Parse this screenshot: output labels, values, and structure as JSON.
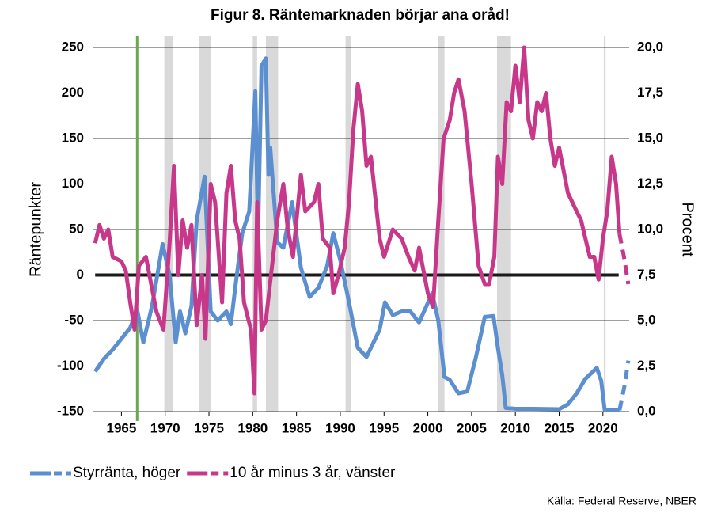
{
  "chart_data": {
    "type": "line",
    "title": "Figur 8. Räntemarknaden börjar ana oråd!",
    "ylabel": "Räntepunkter",
    "y2label": "Procent",
    "source": "Källa: Federal Reserve, NBER",
    "xlim": [
      1961.8,
      2023
    ],
    "xticks": [
      1965,
      1970,
      1975,
      1980,
      1985,
      1990,
      1995,
      2000,
      2005,
      2010,
      2015,
      2020
    ],
    "ylim": [
      -150,
      250
    ],
    "yticks": [
      -150,
      -100,
      -50,
      0,
      50,
      100,
      150,
      200,
      250
    ],
    "y2lim": [
      0,
      20
    ],
    "y2ticks": [
      {
        "value": 0,
        "label": "0,0"
      },
      {
        "value": 2.5,
        "label": "2,5"
      },
      {
        "value": 5,
        "label": "5,0"
      },
      {
        "value": 7.5,
        "label": "7,5"
      },
      {
        "value": 10,
        "label": "10,0"
      },
      {
        "value": 12.5,
        "label": "12,5"
      },
      {
        "value": 15,
        "label": "15,0"
      },
      {
        "value": 17.5,
        "label": "17,5"
      },
      {
        "value": 20,
        "label": "20,0"
      }
    ],
    "grid": true,
    "legend": "bottom-left",
    "recessions": [
      [
        1969.9,
        1970.9
      ],
      [
        1973.9,
        1975.2
      ],
      [
        1980.0,
        1980.5
      ],
      [
        1981.5,
        1982.9
      ],
      [
        1990.6,
        1991.2
      ],
      [
        2001.2,
        2001.9
      ],
      [
        2007.9,
        2009.5
      ],
      [
        2020.1,
        2020.3
      ]
    ],
    "recession_color": "#d9d9d9",
    "highlight_x": 1966.8,
    "highlight_color": "#6aa84f",
    "zero_line": {
      "value": 0,
      "from": 1962,
      "to": 2021.8
    },
    "series": [
      {
        "name": "Styrränta, höger",
        "color": "#5b8fd0",
        "axis": "y2",
        "dashed_from": 2021.9,
        "x": [
          1962.0,
          1963,
          1964,
          1965,
          1966,
          1966.8,
          1967.5,
          1968.5,
          1969.7,
          1970.5,
          1971.2,
          1971.7,
          1972.3,
          1973.0,
          1973.6,
          1974.5,
          1975.2,
          1976,
          1977,
          1977.5,
          1978,
          1978.8,
          1979.6,
          1980.3,
          1980.6,
          1981.0,
          1981.5,
          1981.8,
          1982.0,
          1982.8,
          1983.5,
          1984.5,
          1985.5,
          1986.5,
          1987.5,
          1988.5,
          1989.2,
          1990,
          1991,
          1992,
          1993,
          1994.5,
          1995.1,
          1996,
          1997,
          1998,
          1999,
          2000.5,
          2001.2,
          2001.9,
          2002.5,
          2003.5,
          2004.5,
          2005.5,
          2006.5,
          2007.5,
          2008,
          2008.5,
          2008.9,
          2010,
          2012,
          2015,
          2016,
          2017,
          2018,
          2019.3,
          2019.8,
          2020.2,
          2021,
          2021.9,
          2022.5,
          2022.9
        ],
        "values": [
          2.2,
          2.9,
          3.4,
          4.0,
          4.6,
          5.6,
          3.8,
          5.8,
          9.2,
          7.5,
          3.8,
          5.5,
          4.3,
          5.8,
          10.5,
          12.9,
          5.5,
          5.0,
          5.5,
          4.8,
          6.8,
          9.8,
          11.0,
          17.6,
          9.5,
          19.0,
          19.4,
          13.0,
          14.5,
          9.3,
          9.0,
          11.5,
          7.9,
          6.3,
          6.8,
          8.0,
          9.8,
          8.3,
          6.0,
          3.5,
          3.0,
          4.5,
          6.0,
          5.3,
          5.5,
          5.5,
          4.9,
          6.5,
          5.0,
          1.9,
          1.75,
          1.0,
          1.1,
          3.0,
          5.2,
          5.25,
          3.5,
          2.0,
          0.2,
          0.15,
          0.15,
          0.13,
          0.4,
          1.0,
          1.8,
          2.4,
          1.7,
          0.1,
          0.08,
          0.08,
          1.5,
          2.8
        ]
      },
      {
        "name": "10 år minus 3 år, vänster",
        "color": "#c8388a",
        "axis": "y",
        "dashed_from": 2021.9,
        "x": [
          1962,
          1962.5,
          1963,
          1963.5,
          1964,
          1965,
          1965.5,
          1966,
          1966.5,
          1967,
          1967.8,
          1968.5,
          1969,
          1969.8,
          1970.5,
          1971,
          1971.5,
          1972,
          1972.5,
          1973,
          1973.6,
          1974.2,
          1974.6,
          1975.2,
          1975.7,
          1976.5,
          1977,
          1977.5,
          1978,
          1978.5,
          1979,
          1979.8,
          1980.2,
          1980.5,
          1981,
          1981.5,
          1982.2,
          1982.8,
          1983.5,
          1984,
          1984.6,
          1985,
          1985.5,
          1986,
          1986.5,
          1987,
          1987.5,
          1988,
          1988.8,
          1989.2,
          1989.8,
          1990.5,
          1991,
          1991.5,
          1992,
          1992.5,
          1993,
          1993.5,
          1994.5,
          1995,
          1996,
          1997,
          1997.8,
          1998.5,
          1999,
          2000,
          2000.6,
          2001.2,
          2001.8,
          2002.5,
          2003,
          2003.5,
          2004.2,
          2005,
          2005.8,
          2006.5,
          2007,
          2007.6,
          2008,
          2008.5,
          2009,
          2009.5,
          2010,
          2010.5,
          2011,
          2011.5,
          2012,
          2012.5,
          2013,
          2013.5,
          2014,
          2014.5,
          2015,
          2016,
          2016.5,
          2017,
          2017.5,
          2018,
          2018.5,
          2019,
          2019.5,
          2020,
          2020.5,
          2021,
          2021.5,
          2021.9,
          2022.4,
          2022.9
        ],
        "values": [
          35,
          55,
          40,
          50,
          20,
          15,
          5,
          -30,
          -60,
          10,
          20,
          -15,
          -40,
          -60,
          35,
          120,
          0,
          60,
          30,
          55,
          -55,
          0,
          -70,
          100,
          80,
          -30,
          90,
          120,
          60,
          40,
          -30,
          -60,
          -130,
          80,
          -60,
          -50,
          10,
          60,
          100,
          50,
          20,
          60,
          110,
          70,
          75,
          80,
          100,
          40,
          30,
          -20,
          0,
          30,
          80,
          160,
          210,
          180,
          120,
          130,
          40,
          20,
          50,
          40,
          20,
          5,
          30,
          -20,
          -35,
          60,
          150,
          170,
          200,
          215,
          180,
          100,
          10,
          -10,
          -10,
          20,
          130,
          100,
          190,
          180,
          230,
          190,
          250,
          170,
          150,
          190,
          180,
          200,
          150,
          120,
          140,
          90,
          80,
          70,
          60,
          40,
          20,
          20,
          -5,
          40,
          70,
          130,
          100,
          45,
          20,
          -10
        ]
      }
    ]
  }
}
